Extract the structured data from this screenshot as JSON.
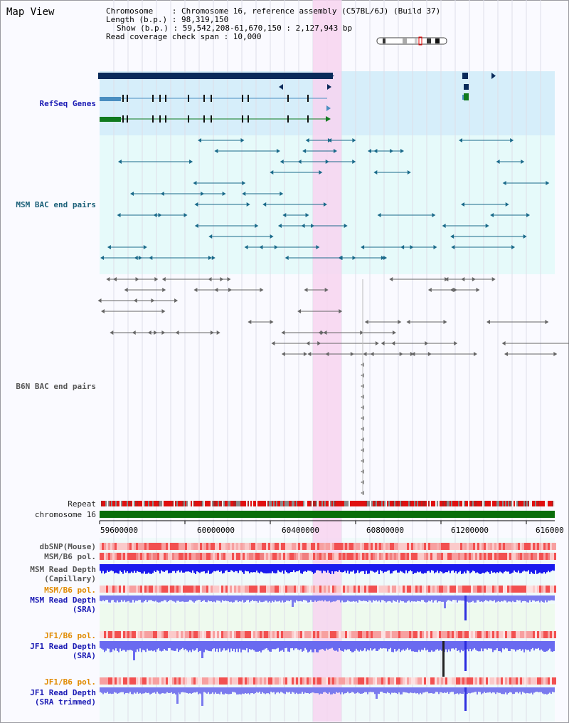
{
  "title": "Map View",
  "info": {
    "chromosome_line": "Chromosome    : Chromosome 16, reference assembly (C57BL/6J) (Build 37)",
    "length_line": "Length (b.p.) : 98,319,150",
    "show_line": "Show (b.p.) : 59,542,208-61,670,150 : 2,127,943 bp",
    "coverage_line": "Read coverage check span : 10,000"
  },
  "tracks": {
    "refseq": "RefSeq Genes",
    "msm_bac": "MSM BAC end pairs",
    "b6n_bac": "B6N BAC end pairs",
    "repeat": "Repeat",
    "chromosome": "chromosome 16",
    "dbsnp": "dbSNP(Mouse)",
    "msm_b6_pol": "MSM/B6 pol.",
    "msm_read_depth_cap": "MSM Read Depth\n(Capillary)",
    "msm_b6_pol_sra": "MSM/B6 pol.",
    "msm_read_depth_sra": "MSM Read Depth\n(SRA)",
    "jf1_b6_pol": "JF1/B6 pol.",
    "jf1_read_depth_sra": "JF1 Read Depth\n(SRA)",
    "jf1_b6_pol2": "JF1/B6 pol.",
    "jf1_read_depth_trim": "JF1 Read Depth\n(SRA trimmed)"
  },
  "axis_ticks": [
    "59600000",
    "60000000",
    "60400000",
    "60800000",
    "61200000",
    "616000"
  ],
  "colors": {
    "highlight": "#f7d4f0",
    "refseq_bg": "#d6eefa",
    "msm_bg": "#e6fafa",
    "refseq_dark": "#0a2a5a",
    "refseq_mid": "#4a8ec0",
    "refseq_green": "#0f7a1e",
    "msm_bac": "#1a6a8a",
    "b6n_bac": "#666666",
    "chromosome": "#0a6e0a",
    "read_depth_cap": "#1a1aee",
    "read_depth_sra": "#7a7aee"
  }
}
